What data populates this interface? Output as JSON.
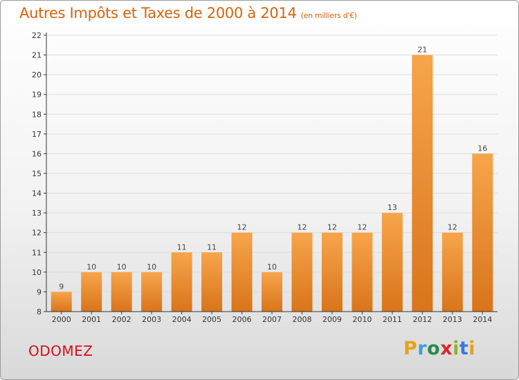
{
  "header": {
    "title": "Autres Impôts et Taxes de 2000 à 2014",
    "unit": "(en milliers d'€)"
  },
  "footer": {
    "commune": "ODOMEZ",
    "logo_letters": [
      "P",
      "r",
      "o",
      "x",
      "i",
      "t",
      "i"
    ],
    "logo_colors": [
      "#e5a21a",
      "#3aa0d8",
      "#2a8a4a",
      "#e0242c",
      "#8ab62a",
      "#3a7ad8",
      "#e5a21a"
    ]
  },
  "chart_data": {
    "type": "bar",
    "title": "Autres Impôts et Taxes de 2000 à 2014",
    "categories": [
      "2000",
      "2001",
      "2002",
      "2003",
      "2004",
      "2005",
      "2006",
      "2007",
      "2008",
      "2009",
      "2010",
      "2011",
      "2012",
      "2013",
      "2014"
    ],
    "values": [
      9,
      10,
      10,
      10,
      11,
      11,
      12,
      10,
      12,
      12,
      12,
      13,
      21,
      12,
      16
    ],
    "ylim": [
      8,
      22
    ],
    "yticks": [
      8,
      9,
      10,
      11,
      12,
      13,
      14,
      15,
      16,
      17,
      18,
      19,
      20,
      21,
      22
    ],
    "grid": true,
    "colors": {
      "bar_light": "#f7a54b",
      "bar_dark": "#d9741a",
      "grid": "#dcdcdc",
      "axis": "#333333"
    }
  }
}
